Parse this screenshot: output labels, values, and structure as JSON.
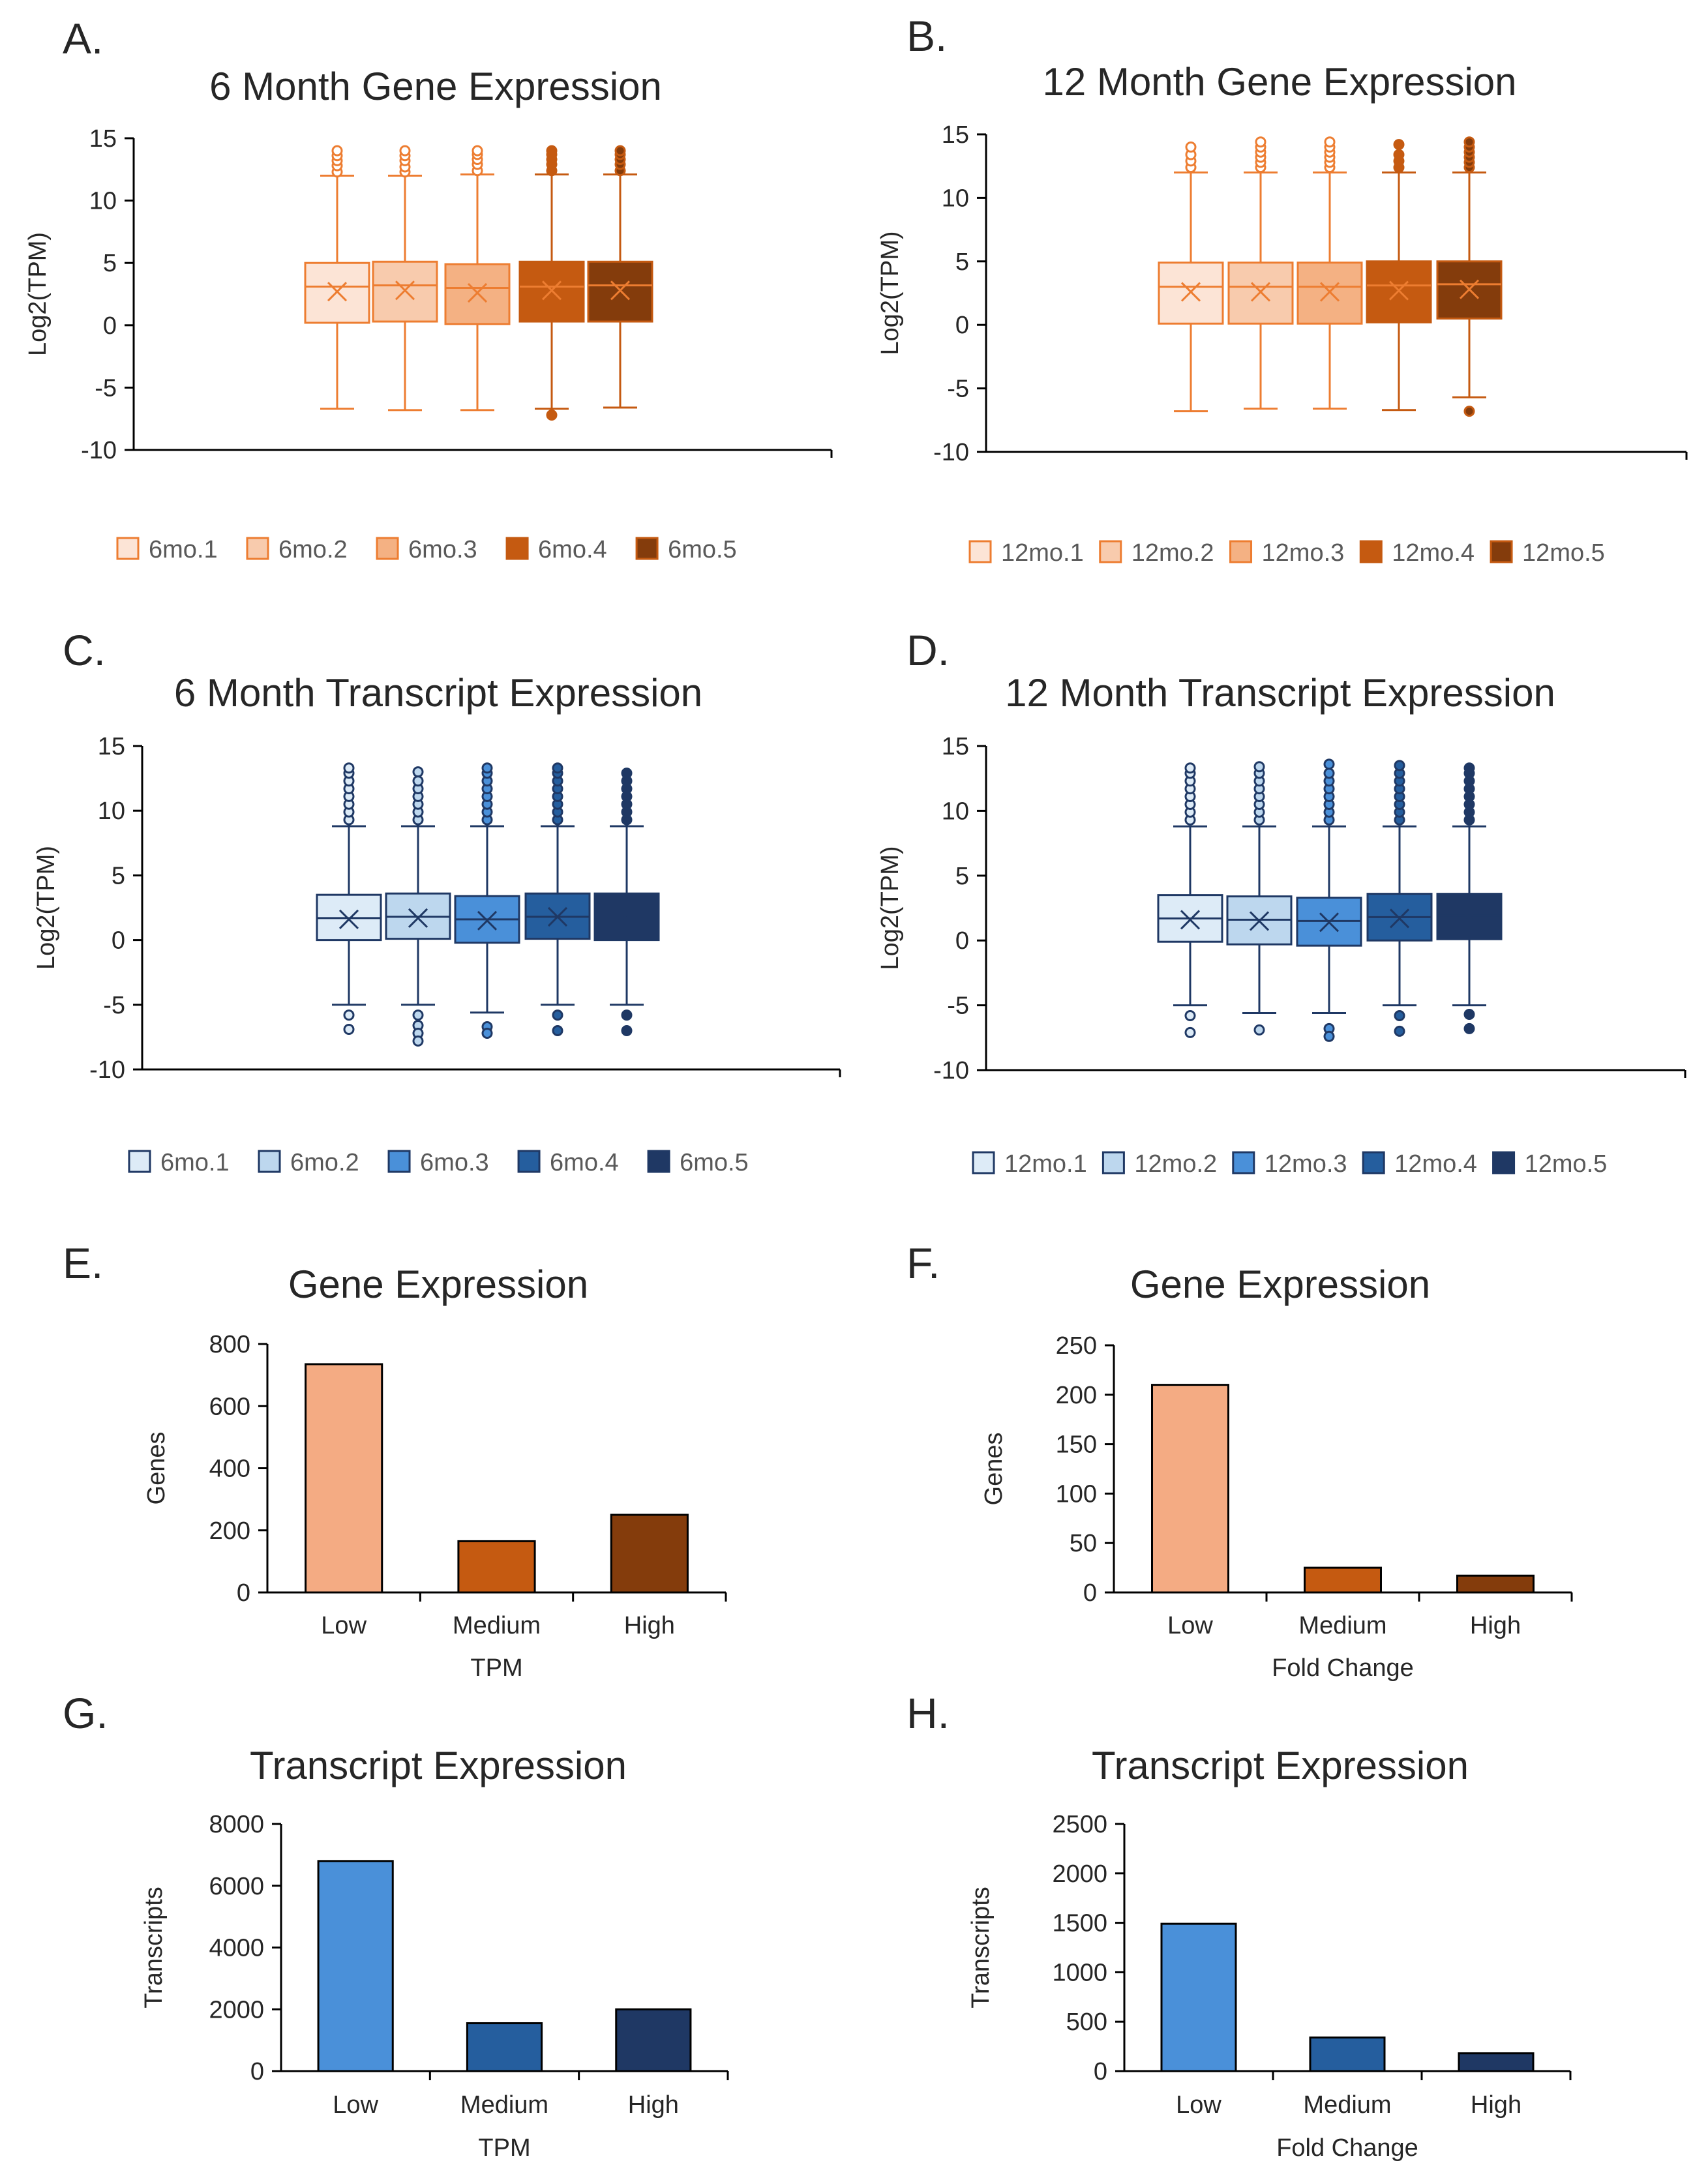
{
  "figure": {
    "panels": [
      "A.",
      "B.",
      "C.",
      "D.",
      "E.",
      "F.",
      "G.",
      "H."
    ]
  },
  "chart_data": [
    {
      "panel": "A.",
      "type": "box",
      "title": "6 Month Gene Expression",
      "ylabel": "Log2(TPM)",
      "xlabel": "",
      "ylim": [
        -10,
        15
      ],
      "yticks": [
        15,
        10,
        5,
        0,
        -5,
        -10
      ],
      "legend_position": "bottom",
      "series": [
        {
          "name": "6mo.1",
          "color": "#FCE4D6",
          "q1": 0.2,
          "median": 3.1,
          "q3": 5.0,
          "mean": 2.7,
          "whisker_low": -6.7,
          "whisker_high": 12.0,
          "outliers": [
            12.3,
            12.8,
            13.2,
            13.6,
            14.0
          ]
        },
        {
          "name": "6mo.2",
          "color": "#F8CBAD",
          "q1": 0.3,
          "median": 3.2,
          "q3": 5.1,
          "mean": 2.8,
          "whisker_low": -6.8,
          "whisker_high": 12.0,
          "outliers": [
            12.3,
            12.7,
            13.2,
            13.6,
            14.0
          ]
        },
        {
          "name": "6mo.3",
          "color": "#F4B183",
          "q1": 0.1,
          "median": 3.0,
          "q3": 4.9,
          "mean": 2.6,
          "whisker_low": -6.8,
          "whisker_high": 12.1,
          "outliers": [
            12.4,
            12.9,
            13.3,
            13.7,
            14.0
          ]
        },
        {
          "name": "6mo.4",
          "color": "#C55A11",
          "q1": 0.3,
          "median": 3.1,
          "q3": 5.1,
          "mean": 2.8,
          "whisker_low": -6.7,
          "whisker_high": 12.1,
          "outliers": [
            -7.2,
            12.4,
            12.9,
            13.3,
            13.7,
            14.0
          ]
        },
        {
          "name": "6mo.5",
          "color": "#843C0C",
          "q1": 0.3,
          "median": 3.2,
          "q3": 5.1,
          "mean": 2.8,
          "whisker_low": -6.6,
          "whisker_high": 12.1,
          "outliers": [
            12.4,
            12.9,
            13.3,
            13.7,
            14.0
          ]
        }
      ]
    },
    {
      "panel": "B.",
      "type": "box",
      "title": "12 Month Gene Expression",
      "ylabel": "Log2(TPM)",
      "xlabel": "",
      "ylim": [
        -10,
        15
      ],
      "yticks": [
        15,
        10,
        5,
        0,
        -5,
        -10
      ],
      "legend_position": "bottom",
      "series": [
        {
          "name": "12mo.1",
          "color": "#FCE4D6",
          "q1": 0.1,
          "median": 3.0,
          "q3": 4.9,
          "mean": 2.6,
          "whisker_low": -6.8,
          "whisker_high": 12.0,
          "outliers": [
            12.4,
            12.9,
            13.4,
            14.0
          ]
        },
        {
          "name": "12mo.2",
          "color": "#F8CBAD",
          "q1": 0.1,
          "median": 3.0,
          "q3": 4.9,
          "mean": 2.6,
          "whisker_low": -6.6,
          "whisker_high": 12.0,
          "outliers": [
            12.4,
            12.8,
            13.2,
            13.6,
            14.0,
            14.4
          ]
        },
        {
          "name": "12mo.3",
          "color": "#F4B183",
          "q1": 0.1,
          "median": 3.0,
          "q3": 4.9,
          "mean": 2.6,
          "whisker_low": -6.6,
          "whisker_high": 12.0,
          "outliers": [
            12.4,
            12.8,
            13.2,
            13.6,
            14.0,
            14.4
          ]
        },
        {
          "name": "12mo.4",
          "color": "#C55A11",
          "q1": 0.2,
          "median": 3.1,
          "q3": 5.0,
          "mean": 2.7,
          "whisker_low": -6.7,
          "whisker_high": 12.0,
          "outliers": [
            12.4,
            12.9,
            13.4,
            14.2
          ]
        },
        {
          "name": "12mo.5",
          "color": "#843C0C",
          "q1": 0.5,
          "median": 3.2,
          "q3": 5.0,
          "mean": 2.8,
          "whisker_low": -5.7,
          "whisker_high": 12.0,
          "outliers": [
            -6.8,
            12.4,
            12.8,
            13.2,
            13.6,
            14.0,
            14.4
          ]
        }
      ]
    },
    {
      "panel": "C.",
      "type": "box",
      "title": "6 Month Transcript Expression",
      "ylabel": "Log2(TPM)",
      "xlabel": "",
      "ylim": [
        -10,
        15
      ],
      "yticks": [
        15,
        10,
        5,
        0,
        -5,
        -10
      ],
      "legend_position": "bottom",
      "series": [
        {
          "name": "6mo.1",
          "color": "#DDEBF7",
          "q1": 0.0,
          "median": 1.7,
          "q3": 3.5,
          "mean": 1.6,
          "whisker_low": -5.0,
          "whisker_high": 8.8,
          "outliers": [
            -5.8,
            -6.9,
            9.3,
            9.9,
            10.5,
            11.1,
            11.7,
            12.3,
            12.9,
            13.3
          ]
        },
        {
          "name": "6mo.2",
          "color": "#BDD7EE",
          "q1": 0.1,
          "median": 1.8,
          "q3": 3.6,
          "mean": 1.7,
          "whisker_low": -5.0,
          "whisker_high": 8.8,
          "outliers": [
            -5.8,
            -6.6,
            -7.2,
            -7.8,
            9.3,
            9.9,
            10.5,
            11.1,
            11.7,
            12.3,
            13.0
          ]
        },
        {
          "name": "6mo.3",
          "color": "#4A90D9",
          "q1": -0.2,
          "median": 1.6,
          "q3": 3.4,
          "mean": 1.5,
          "whisker_low": -5.6,
          "whisker_high": 8.8,
          "outliers": [
            -6.7,
            -7.2,
            9.3,
            9.9,
            10.5,
            11.1,
            11.7,
            12.3,
            12.9,
            13.3
          ]
        },
        {
          "name": "6mo.4",
          "color": "#255E9E",
          "q1": 0.1,
          "median": 1.8,
          "q3": 3.6,
          "mean": 1.8,
          "whisker_low": -5.0,
          "whisker_high": 8.8,
          "outliers": [
            -5.8,
            -7.0,
            9.3,
            9.9,
            10.5,
            11.1,
            11.7,
            12.3,
            12.9,
            13.3
          ]
        },
        {
          "name": "6mo.5",
          "color": "#1F3864",
          "q1": 0.0,
          "median": 1.8,
          "q3": 3.6,
          "mean": 1.7,
          "whisker_low": -5.0,
          "whisker_high": 8.8,
          "outliers": [
            -5.8,
            -7.0,
            9.3,
            9.9,
            10.5,
            11.1,
            11.7,
            12.3,
            12.9
          ]
        }
      ]
    },
    {
      "panel": "D.",
      "type": "box",
      "title": "12 Month Transcript Expression",
      "ylabel": "Log2(TPM)",
      "xlabel": "",
      "ylim": [
        -10,
        15
      ],
      "yticks": [
        15,
        10,
        5,
        0,
        -5,
        -10
      ],
      "legend_position": "bottom",
      "series": [
        {
          "name": "12mo.1",
          "color": "#DDEBF7",
          "q1": -0.1,
          "median": 1.7,
          "q3": 3.5,
          "mean": 1.6,
          "whisker_low": -5.0,
          "whisker_high": 8.8,
          "outliers": [
            -5.8,
            -7.1,
            9.3,
            9.9,
            10.5,
            11.1,
            11.7,
            12.3,
            12.9,
            13.3
          ]
        },
        {
          "name": "12mo.2",
          "color": "#BDD7EE",
          "q1": -0.3,
          "median": 1.6,
          "q3": 3.4,
          "mean": 1.5,
          "whisker_low": -5.6,
          "whisker_high": 8.8,
          "outliers": [
            -6.9,
            9.3,
            9.9,
            10.5,
            11.1,
            11.7,
            12.3,
            12.9,
            13.4
          ]
        },
        {
          "name": "12mo.3",
          "color": "#4A90D9",
          "q1": -0.4,
          "median": 1.5,
          "q3": 3.3,
          "mean": 1.4,
          "whisker_low": -5.6,
          "whisker_high": 8.8,
          "outliers": [
            -6.8,
            -7.4,
            9.3,
            9.9,
            10.5,
            11.1,
            11.7,
            12.3,
            12.9,
            13.6
          ]
        },
        {
          "name": "12mo.4",
          "color": "#255E9E",
          "q1": 0.0,
          "median": 1.8,
          "q3": 3.6,
          "mean": 1.7,
          "whisker_low": -5.0,
          "whisker_high": 8.8,
          "outliers": [
            -5.8,
            -7.0,
            9.3,
            9.9,
            10.5,
            11.1,
            11.7,
            12.3,
            12.9,
            13.5
          ]
        },
        {
          "name": "12mo.5",
          "color": "#1F3864",
          "q1": 0.1,
          "median": 1.9,
          "q3": 3.6,
          "mean": 1.8,
          "whisker_low": -5.0,
          "whisker_high": 8.8,
          "outliers": [
            -5.7,
            -6.8,
            9.3,
            9.9,
            10.5,
            11.1,
            11.7,
            12.3,
            12.9,
            13.3
          ]
        }
      ]
    },
    {
      "panel": "E.",
      "type": "bar",
      "title": "Gene Expression",
      "ylabel": "Genes",
      "xlabel": "TPM",
      "ylim": [
        0,
        800
      ],
      "yticks": [
        800,
        600,
        400,
        200,
        0
      ],
      "categories": [
        "Low",
        "Medium",
        "High"
      ],
      "values": [
        735,
        165,
        250
      ],
      "colors": [
        "#F4AB83",
        "#C55A11",
        "#843C0C"
      ]
    },
    {
      "panel": "F.",
      "type": "bar",
      "title": "Gene Expression",
      "ylabel": "Genes",
      "xlabel": "Fold Change",
      "ylim": [
        0,
        250
      ],
      "yticks": [
        250,
        200,
        150,
        100,
        50,
        0
      ],
      "categories": [
        "Low",
        "Medium",
        "High"
      ],
      "values": [
        210,
        25,
        17
      ],
      "colors": [
        "#F4AB83",
        "#C55A11",
        "#843C0C"
      ]
    },
    {
      "panel": "G.",
      "type": "bar",
      "title": "Transcript Expression",
      "ylabel": "Transcripts",
      "xlabel": "TPM",
      "ylim": [
        0,
        8000
      ],
      "yticks": [
        8000,
        6000,
        4000,
        2000,
        0
      ],
      "categories": [
        "Low",
        "Medium",
        "High"
      ],
      "values": [
        6800,
        1550,
        2000
      ],
      "colors": [
        "#4A90D9",
        "#255E9E",
        "#1F3864"
      ]
    },
    {
      "panel": "H.",
      "type": "bar",
      "title": "Transcript Expression",
      "ylabel": "Transcripts",
      "xlabel": "Fold Change",
      "ylim": [
        0,
        2500
      ],
      "yticks": [
        2500,
        2000,
        1500,
        1000,
        500,
        0
      ],
      "categories": [
        "Low",
        "Medium",
        "High"
      ],
      "values": [
        1490,
        340,
        180
      ],
      "colors": [
        "#4A90D9",
        "#255E9E",
        "#1F3864"
      ]
    }
  ]
}
